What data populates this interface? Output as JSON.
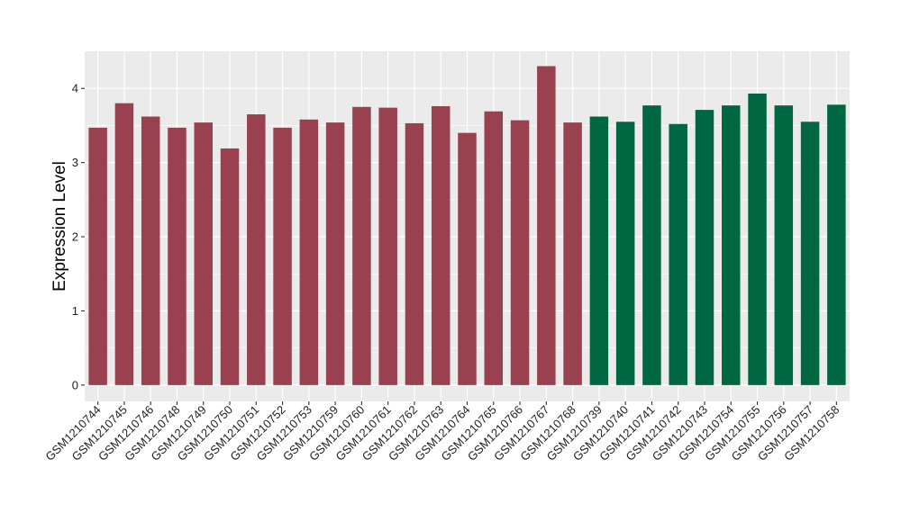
{
  "chart_data": {
    "type": "bar",
    "title": "",
    "xlabel": "",
    "ylabel": "Expression Level",
    "ylim": [
      -0.22,
      4.5
    ],
    "yticks": [
      0,
      1,
      2,
      3,
      4
    ],
    "grid": true,
    "legend": "none",
    "colors": {
      "group1": "#9A4150",
      "group2": "#006743",
      "panel": "#EBEBEB",
      "grid": "#FFFFFF"
    },
    "categories": [
      "GSM1210744",
      "GSM1210745",
      "GSM1210746",
      "GSM1210748",
      "GSM1210749",
      "GSM1210750",
      "GSM1210751",
      "GSM1210752",
      "GSM1210753",
      "GSM1210759",
      "GSM1210760",
      "GSM1210761",
      "GSM1210762",
      "GSM1210763",
      "GSM1210764",
      "GSM1210765",
      "GSM1210766",
      "GSM1210767",
      "GSM1210768",
      "GSM1210739",
      "GSM1210740",
      "GSM1210741",
      "GSM1210742",
      "GSM1210743",
      "GSM1210754",
      "GSM1210755",
      "GSM1210756",
      "GSM1210757",
      "GSM1210758"
    ],
    "values": [
      3.47,
      3.8,
      3.62,
      3.47,
      3.54,
      3.19,
      3.65,
      3.47,
      3.58,
      3.54,
      3.75,
      3.74,
      3.53,
      3.76,
      3.4,
      3.69,
      3.57,
      4.3,
      3.54,
      3.62,
      3.55,
      3.77,
      3.52,
      3.71,
      3.77,
      3.93,
      3.77,
      3.55,
      3.78
    ],
    "groups": [
      "group1",
      "group1",
      "group1",
      "group1",
      "group1",
      "group1",
      "group1",
      "group1",
      "group1",
      "group1",
      "group1",
      "group1",
      "group1",
      "group1",
      "group1",
      "group1",
      "group1",
      "group1",
      "group1",
      "group2",
      "group2",
      "group2",
      "group2",
      "group2",
      "group2",
      "group2",
      "group2",
      "group2",
      "group2"
    ]
  }
}
